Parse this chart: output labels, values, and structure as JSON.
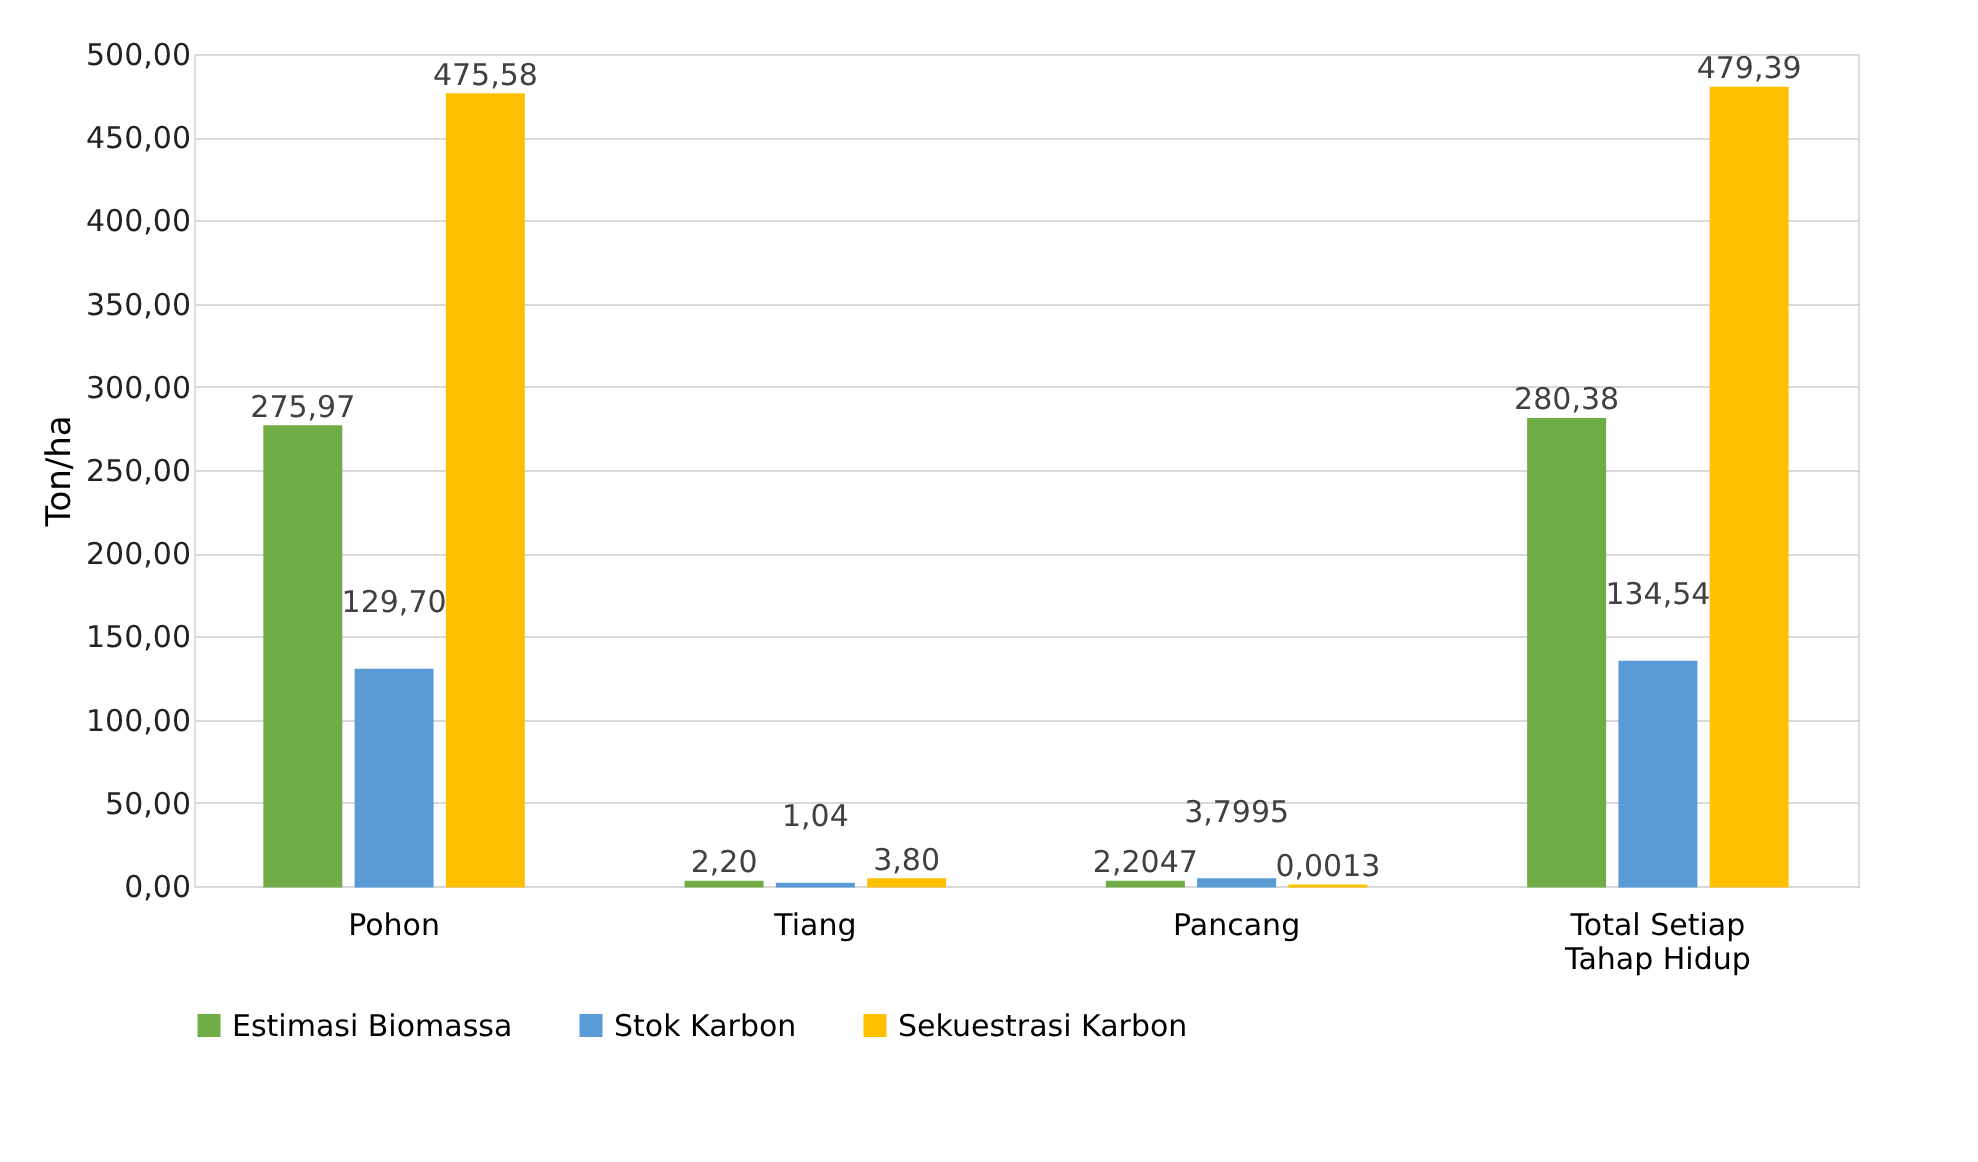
{
  "chart_data": {
    "type": "bar",
    "ylabel": "Ton/ha",
    "categories": [
      "Pohon",
      "Tiang",
      "Pancang",
      "Total Setiap Tahap Hidup"
    ],
    "series": [
      {
        "name": "Estimasi Biomassa",
        "color": "#70ad47",
        "values": [
          275.97,
          2.2,
          2.2047,
          280.38
        ],
        "value_labels": [
          "275,97",
          "2,20",
          "2,2047",
          "280,38"
        ]
      },
      {
        "name": "Stok Karbon",
        "color": "#5b9bd5",
        "values": [
          129.7,
          1.04,
          3.7995,
          134.54
        ],
        "value_labels": [
          "129,70",
          "1,04",
          "3,7995",
          "134,54"
        ]
      },
      {
        "name": "Sekuestrasi Karbon",
        "color": "#ffc000",
        "values": [
          475.58,
          3.8,
          0.0013,
          479.39
        ],
        "value_labels": [
          "475,58",
          "3,80",
          "0,0013",
          "479,39"
        ]
      }
    ],
    "ylim": [
      0,
      500
    ],
    "yticks": [
      {
        "value": 0,
        "label": "0,00"
      },
      {
        "value": 50,
        "label": "50,00"
      },
      {
        "value": 100,
        "label": "100,00"
      },
      {
        "value": 150,
        "label": "150,00"
      },
      {
        "value": 200,
        "label": "200,00"
      },
      {
        "value": 250,
        "label": "250,00"
      },
      {
        "value": 300,
        "label": "300,00"
      },
      {
        "value": 350,
        "label": "350,00"
      },
      {
        "value": 400,
        "label": "400,00"
      },
      {
        "value": 450,
        "label": "450,00"
      },
      {
        "value": 500,
        "label": "500,00"
      }
    ],
    "grid": "y",
    "legend": "bottom"
  }
}
